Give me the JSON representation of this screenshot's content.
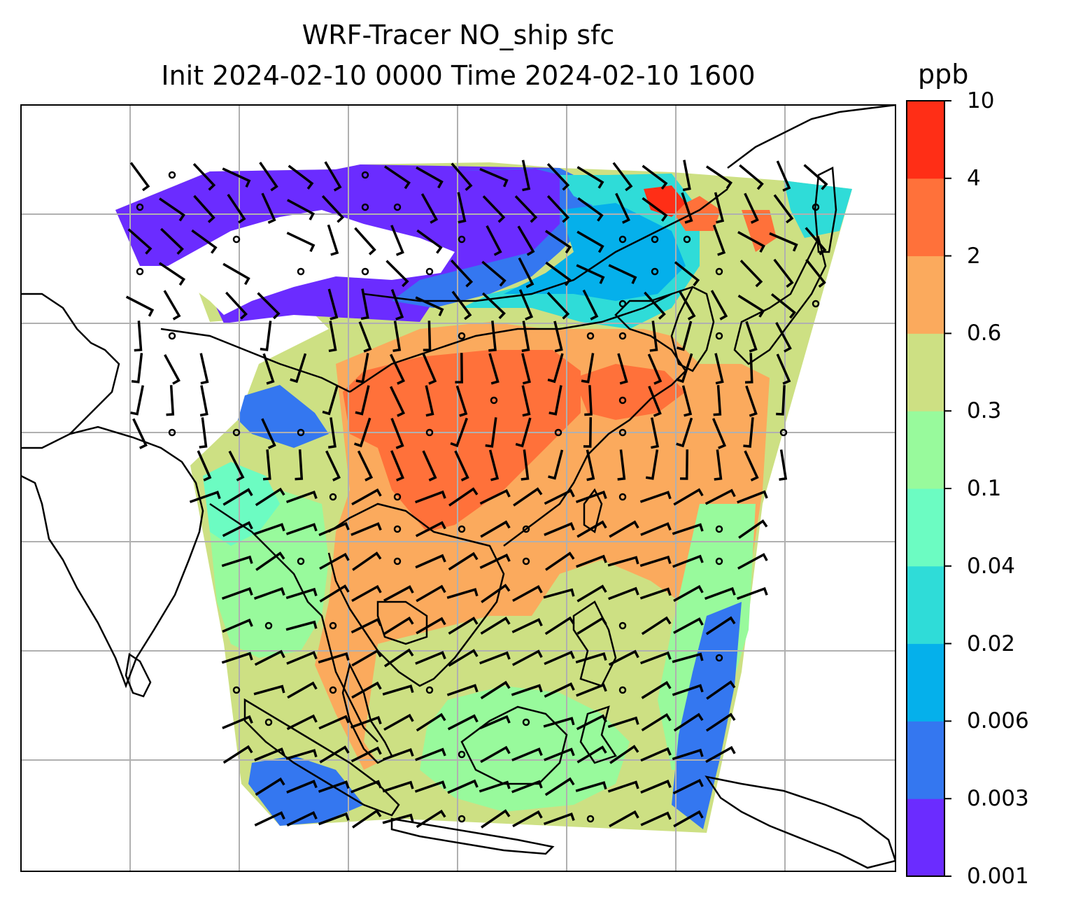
{
  "title": {
    "line1": "WRF-Tracer NO_ship sfc",
    "line2": "Init 2024-02-10 0000 Time 2024-02-10 1600"
  },
  "colorbar": {
    "unit": "ppb",
    "levels": [
      "0.001",
      "0.003",
      "0.006",
      "0.02",
      "0.04",
      "0.1",
      "0.3",
      "0.6",
      "2",
      "4",
      "10"
    ],
    "colors": [
      "#6b2cff",
      "#3477f0",
      "#05b0eb",
      "#2fdcd8",
      "#6cfcc2",
      "#98fa9c",
      "#cde083",
      "#fbaa5d",
      "#ff713a",
      "#ff2e16"
    ]
  },
  "map": {
    "gridlines": true,
    "overlay": "wind barbs",
    "coastline_color": "#000000",
    "grid_color": "#b0b0b0"
  }
}
